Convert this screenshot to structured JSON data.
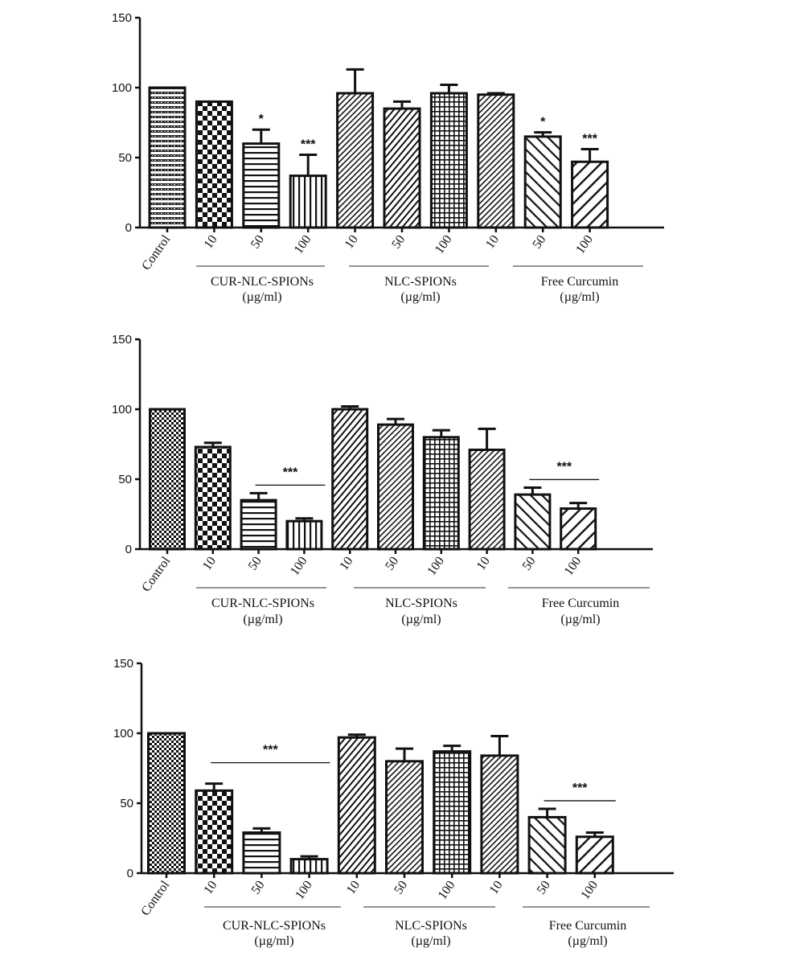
{
  "figure": {
    "colors": {
      "ink": "#111111",
      "background": "#ffffff"
    }
  },
  "chart_data": [
    {
      "type": "bar",
      "panel": "top",
      "ylim": [
        0,
        150
      ],
      "yticks": [
        0,
        50,
        100,
        150
      ],
      "categories": [
        "Control",
        "10",
        "50",
        "100",
        "10",
        "50",
        "100",
        "10",
        "50",
        "100"
      ],
      "values": [
        100,
        90,
        60,
        37,
        96,
        85,
        96,
        95,
        65,
        47
      ],
      "errors": [
        0,
        0,
        10,
        15,
        17,
        5,
        6,
        1,
        3,
        9
      ],
      "patterns": [
        "hlines",
        "check",
        "hstripes",
        "vstripes",
        "diag-fine",
        "diag-med",
        "grid",
        "diag-fine",
        "diag-back",
        "diag-wide"
      ],
      "groups": [
        {
          "label": "CUR-NLC-SPIONs",
          "unit": "(µg/ml)",
          "start": 1,
          "end": 3
        },
        {
          "label": "NLC-SPIONs",
          "unit": "(µg/ml)",
          "start": 4,
          "end": 6
        },
        {
          "label": "Free Curcumin",
          "unit": "(µg/ml)",
          "start": 7,
          "end": 9
        }
      ],
      "significance": [
        {
          "text": "*",
          "bar": 2
        },
        {
          "text": "***",
          "bar": 3
        },
        {
          "text": "*",
          "bar": 8
        },
        {
          "text": "***",
          "bar": 9
        }
      ]
    },
    {
      "type": "bar",
      "panel": "middle",
      "ylim": [
        0,
        150
      ],
      "yticks": [
        0,
        50,
        100,
        150
      ],
      "categories": [
        "Control",
        "10",
        "50",
        "100",
        "10",
        "50",
        "100",
        "10",
        "50",
        "100"
      ],
      "values": [
        100,
        73,
        35,
        20,
        100,
        89,
        80,
        71,
        39,
        29
      ],
      "errors": [
        0,
        3,
        5,
        2,
        2,
        4,
        5,
        15,
        5,
        4
      ],
      "patterns": [
        "check-fine",
        "check",
        "hstripes",
        "vstripes",
        "diag-med",
        "diag-fine",
        "grid",
        "diag-fine",
        "diag-back",
        "diag-wide"
      ],
      "groups": [
        {
          "label": "CUR-NLC-SPIONs",
          "unit": "(µg/ml)",
          "start": 1,
          "end": 3
        },
        {
          "label": "NLC-SPIONs",
          "unit": "(µg/ml)",
          "start": 4,
          "end": 6
        },
        {
          "label": "Free Curcumin",
          "unit": "(µg/ml)",
          "start": 7,
          "end": 9
        }
      ],
      "significance": [
        {
          "text": "***",
          "from": 2,
          "to": 3
        },
        {
          "text": "***",
          "from": 8,
          "to": 9
        }
      ]
    },
    {
      "type": "bar",
      "panel": "bottom",
      "ylim": [
        0,
        150
      ],
      "yticks": [
        0,
        50,
        100,
        150
      ],
      "categories": [
        "Control",
        "10",
        "50",
        "100",
        "10",
        "50",
        "100",
        "10",
        "50",
        "100"
      ],
      "values": [
        100,
        59,
        29,
        10,
        97,
        80,
        87,
        84,
        40,
        26
      ],
      "errors": [
        0,
        5,
        3,
        2,
        2,
        9,
        4,
        14,
        6,
        3
      ],
      "patterns": [
        "check-fine",
        "check",
        "hstripes",
        "vstripes",
        "diag-med",
        "diag-fine",
        "grid",
        "diag-fine",
        "diag-back",
        "diag-wide"
      ],
      "groups": [
        {
          "label": "CUR-NLC-SPIONs",
          "unit": "(µg/ml)",
          "start": 1,
          "end": 3
        },
        {
          "label": "NLC-SPIONs",
          "unit": "(µg/ml)",
          "start": 4,
          "end": 6
        },
        {
          "label": "Free Curcumin",
          "unit": "(µg/ml)",
          "start": 7,
          "end": 9
        }
      ],
      "significance": [
        {
          "text": "***",
          "from": 1,
          "to": 3
        },
        {
          "text": "***",
          "from": 8,
          "to": 9
        }
      ]
    }
  ]
}
